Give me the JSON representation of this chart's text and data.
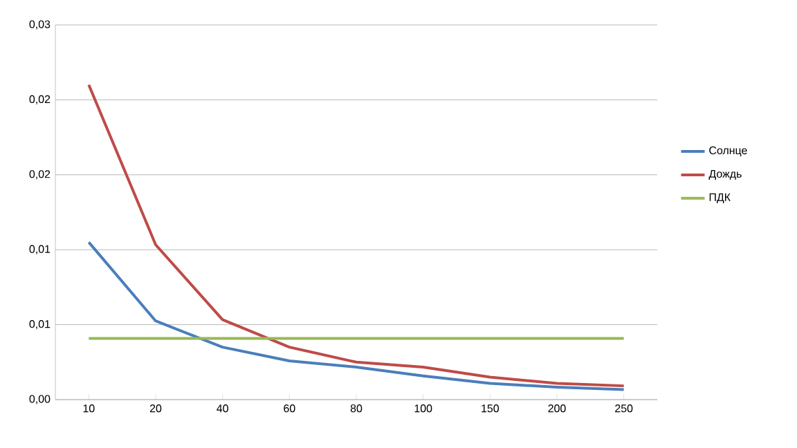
{
  "chart_data": {
    "type": "line",
    "categories": [
      "10",
      "20",
      "40",
      "60",
      "80",
      "100",
      "150",
      "200",
      "250"
    ],
    "series": [
      {
        "name": "Солнце",
        "color": "#4a7ebb",
        "values": [
          0.0126,
          0.0063,
          0.0042,
          0.0031,
          0.0026,
          0.0019,
          0.0013,
          0.001,
          0.0008
        ]
      },
      {
        "name": "Дождь",
        "color": "#be4b48",
        "values": [
          0.0252,
          0.0124,
          0.0064,
          0.0042,
          0.003,
          0.0026,
          0.0018,
          0.0013,
          0.0011
        ]
      },
      {
        "name": "ПДК",
        "color": "#98b954",
        "values": [
          0.0049,
          0.0049,
          0.0049,
          0.0049,
          0.0049,
          0.0049,
          0.0049,
          0.0049,
          0.0049
        ]
      }
    ],
    "ylim": [
      0,
      0.03
    ],
    "yticks": [
      {
        "value": 0,
        "label": "0,00"
      },
      {
        "value": 0.006,
        "label": "0,01"
      },
      {
        "value": 0.012,
        "label": "0,01"
      },
      {
        "value": 0.018,
        "label": "0,02"
      },
      {
        "value": 0.024,
        "label": "0,02"
      },
      {
        "value": 0.03,
        "label": "0,03"
      }
    ],
    "grid": "y",
    "legend": "right",
    "marker": "none",
    "line_style": "solid"
  }
}
